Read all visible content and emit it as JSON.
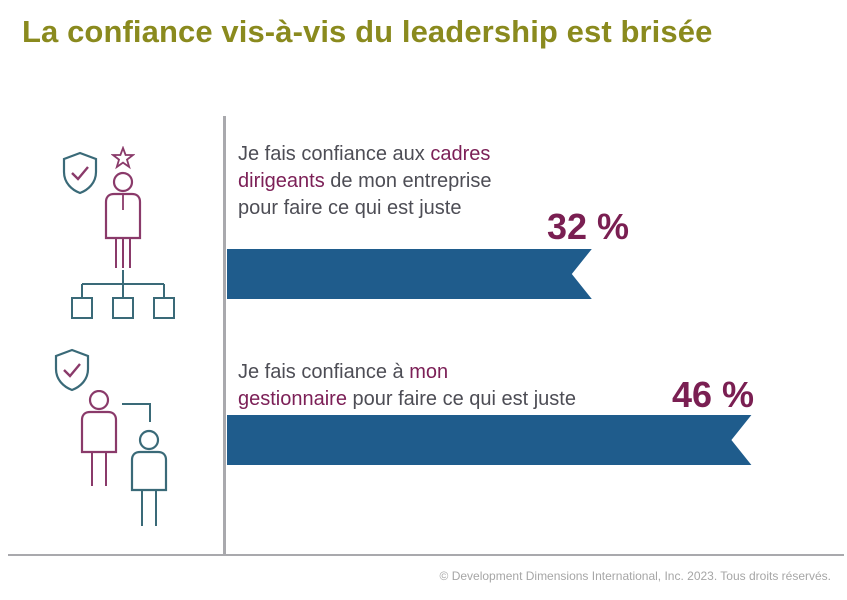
{
  "title": "La confiance vis-à-vis du leadership est brisée",
  "colors": {
    "title": "#8a8a1e",
    "bar": "#1f5c8c",
    "highlight": "#7c2057",
    "text": "#4d4d55",
    "icon_plum": "#8a3a6a",
    "icon_teal": "#3a6a78"
  },
  "chart_data": {
    "type": "bar",
    "orientation": "horizontal",
    "categories": [
      "Je fais confiance aux cadres dirigeants de mon entreprise pour faire ce qui est juste",
      "Je fais confiance à mon gestionnaire pour faire ce qui est juste"
    ],
    "values": [
      32,
      46
    ],
    "unit": "%",
    "xlim": [
      0,
      50
    ],
    "statements": [
      {
        "pre": "Je fais confiance aux ",
        "highlight1": "cadres",
        "highlight2": "dirigeants",
        "post1": " de mon entreprise",
        "post2": "pour faire ce qui est juste",
        "label": "32 %"
      },
      {
        "pre": "Je fais confiance à ",
        "highlight1": "mon",
        "highlight2": "gestionnaire",
        "post1": " pour faire ce qui est juste",
        "post2": "",
        "label": "46 %"
      }
    ]
  },
  "icons": [
    "shield-check-icon",
    "star-icon",
    "executive-person-icon",
    "org-chart-icon",
    "shield-check-icon",
    "manager-person-icon",
    "employee-person-icon"
  ],
  "footer": {
    "copyright": "© Development Dimensions International, Inc. 2023. Tous droits réservés."
  }
}
